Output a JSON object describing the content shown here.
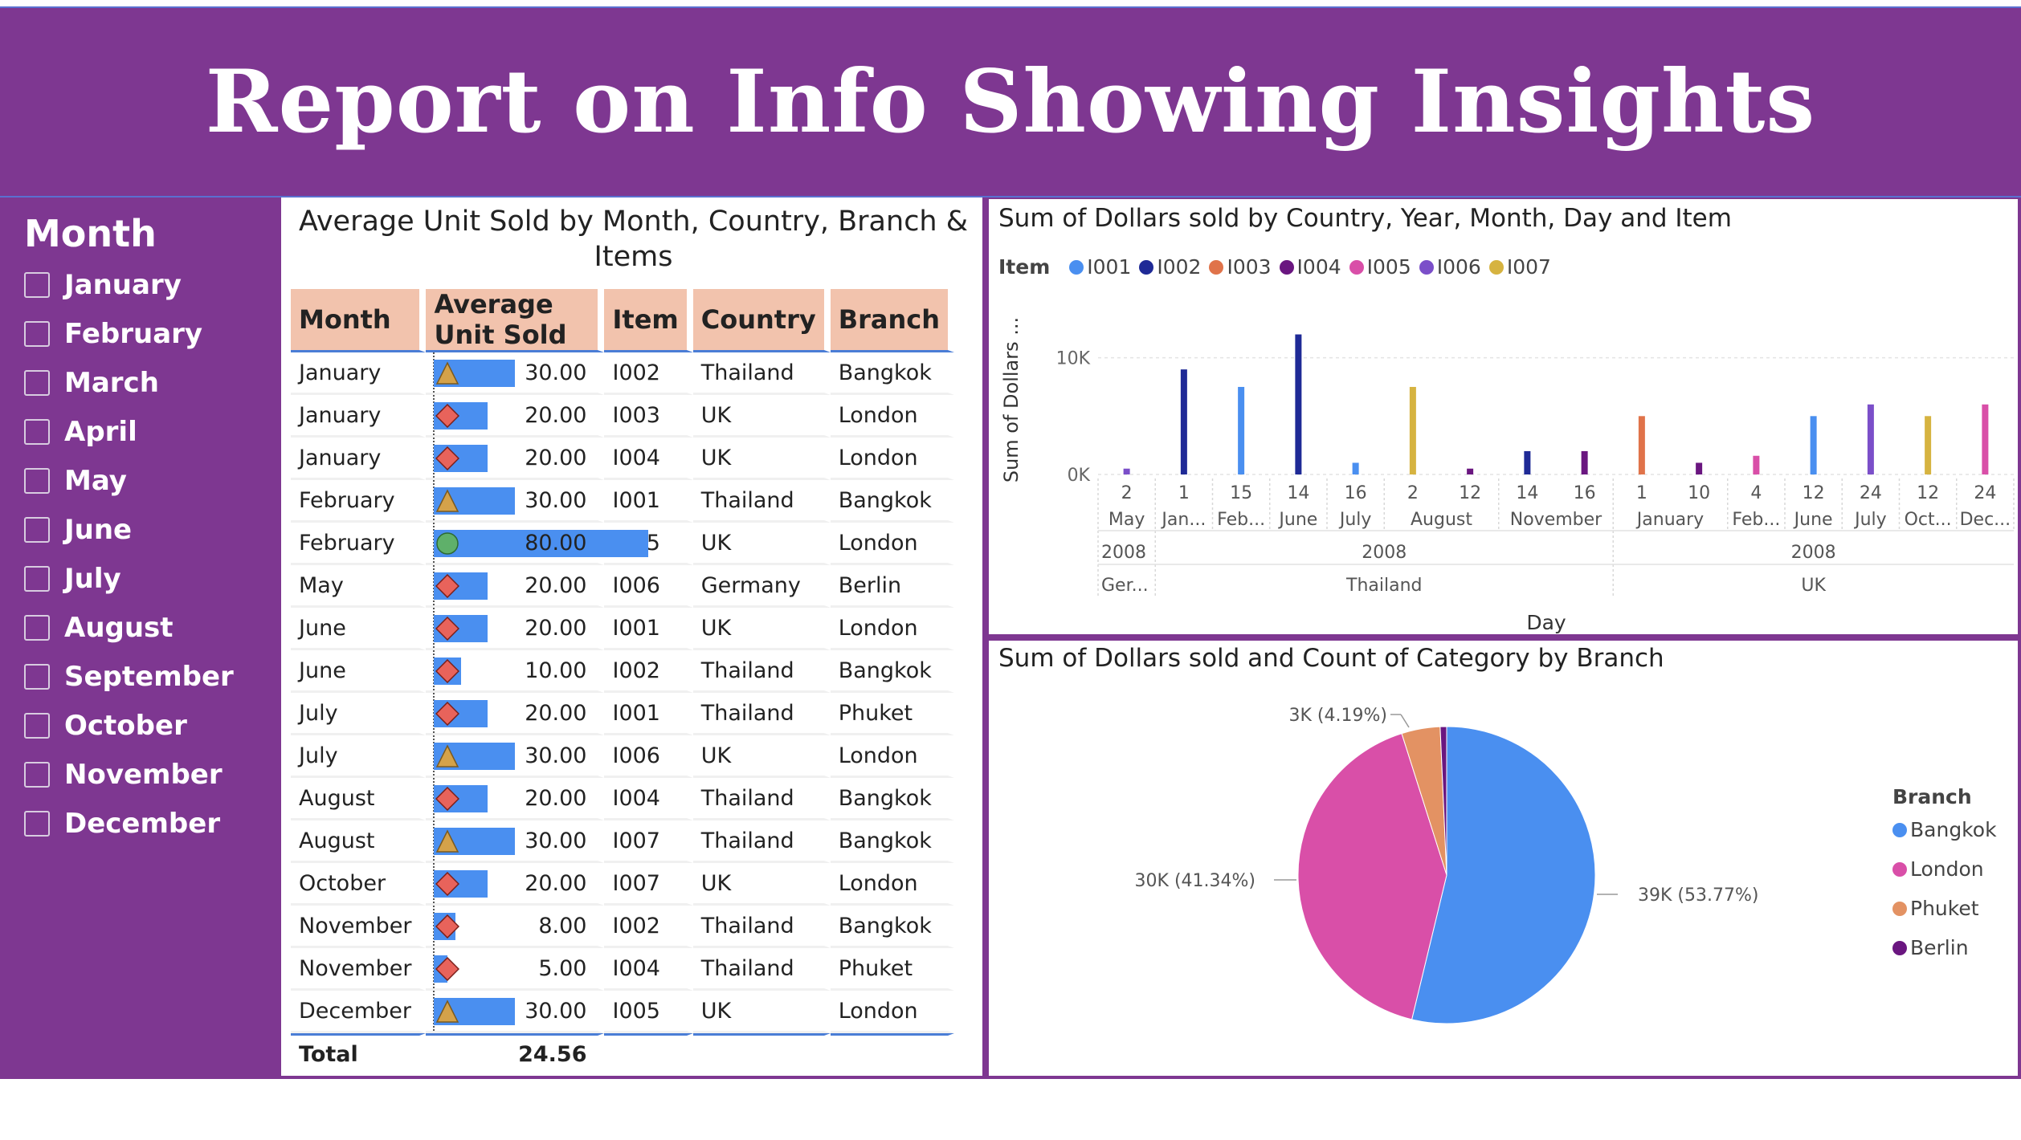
{
  "header": {
    "title": "Report on Info Showing Insights"
  },
  "slicer": {
    "title": "Month",
    "items": [
      "January",
      "February",
      "March",
      "April",
      "May",
      "June",
      "July",
      "August",
      "September",
      "October",
      "November",
      "December"
    ]
  },
  "table": {
    "title": "Average Unit Sold by Month, Country, Branch & Items",
    "columns": [
      "Month",
      "Average Unit Sold",
      "Item",
      "Country",
      "Branch"
    ],
    "max_value": 80,
    "rows": [
      {
        "month": "January",
        "avg": "30.00",
        "value": 30,
        "kpi": "triangle",
        "item": "I002",
        "country": "Thailand",
        "branch": "Bangkok"
      },
      {
        "month": "January",
        "avg": "20.00",
        "value": 20,
        "kpi": "diamond",
        "item": "I003",
        "country": "UK",
        "branch": "London"
      },
      {
        "month": "January",
        "avg": "20.00",
        "value": 20,
        "kpi": "diamond",
        "item": "I004",
        "country": "UK",
        "branch": "London"
      },
      {
        "month": "February",
        "avg": "30.00",
        "value": 30,
        "kpi": "triangle",
        "item": "I001",
        "country": "Thailand",
        "branch": "Bangkok"
      },
      {
        "month": "February",
        "avg": "80.00",
        "value": 80,
        "kpi": "circle",
        "item": "I005",
        "country": "UK",
        "branch": "London"
      },
      {
        "month": "May",
        "avg": "20.00",
        "value": 20,
        "kpi": "diamond",
        "item": "I006",
        "country": "Germany",
        "branch": "Berlin"
      },
      {
        "month": "June",
        "avg": "20.00",
        "value": 20,
        "kpi": "diamond",
        "item": "I001",
        "country": "UK",
        "branch": "London"
      },
      {
        "month": "June",
        "avg": "10.00",
        "value": 10,
        "kpi": "diamond",
        "item": "I002",
        "country": "Thailand",
        "branch": "Bangkok"
      },
      {
        "month": "July",
        "avg": "20.00",
        "value": 20,
        "kpi": "diamond",
        "item": "I001",
        "country": "Thailand",
        "branch": "Phuket"
      },
      {
        "month": "July",
        "avg": "30.00",
        "value": 30,
        "kpi": "triangle",
        "item": "I006",
        "country": "UK",
        "branch": "London"
      },
      {
        "month": "August",
        "avg": "20.00",
        "value": 20,
        "kpi": "diamond",
        "item": "I004",
        "country": "Thailand",
        "branch": "Bangkok"
      },
      {
        "month": "August",
        "avg": "30.00",
        "value": 30,
        "kpi": "triangle",
        "item": "I007",
        "country": "Thailand",
        "branch": "Bangkok"
      },
      {
        "month": "October",
        "avg": "20.00",
        "value": 20,
        "kpi": "diamond",
        "item": "I007",
        "country": "UK",
        "branch": "London"
      },
      {
        "month": "November",
        "avg": "8.00",
        "value": 8,
        "kpi": "diamond",
        "item": "I002",
        "country": "Thailand",
        "branch": "Bangkok"
      },
      {
        "month": "November",
        "avg": "5.00",
        "value": 5,
        "kpi": "diamond",
        "item": "I004",
        "country": "Thailand",
        "branch": "Phuket"
      },
      {
        "month": "December",
        "avg": "30.00",
        "value": 30,
        "kpi": "triangle",
        "item": "I005",
        "country": "UK",
        "branch": "London"
      }
    ],
    "total_label": "Total",
    "total_value": "24.56"
  },
  "colors": {
    "purple": "#7e3791",
    "header_fill": "#f2c3ad",
    "bar_blue": "#4a8ff0",
    "kpi_triangle": "#d4a24a",
    "kpi_diamond": "#e8635b",
    "kpi_circle": "#5fb06a"
  },
  "chart_data": [
    {
      "type": "bar",
      "title": "Sum of Dollars sold by Country, Year, Month, Day and Item",
      "ylabel": "Sum of Dollars ...",
      "xlabel": "Day",
      "legend_title": "Item",
      "legend_position": "top-left",
      "yticks": [
        "0K",
        "10K"
      ],
      "ylim": [
        0,
        13000
      ],
      "grid": true,
      "series": [
        {
          "name": "I001",
          "color": "#4a8ff0"
        },
        {
          "name": "I002",
          "color": "#1f2a96"
        },
        {
          "name": "I003",
          "color": "#e0734a"
        },
        {
          "name": "I004",
          "color": "#6a1680"
        },
        {
          "name": "I005",
          "color": "#d94fa8"
        },
        {
          "name": "I006",
          "color": "#7b4fc9"
        },
        {
          "name": "I007",
          "color": "#d6b340"
        }
      ],
      "day_labels": [
        {
          "day": "2",
          "month": "May"
        },
        {
          "day": "1",
          "month": "Jan..."
        },
        {
          "day": "15",
          "month": "Feb..."
        },
        {
          "day": "14",
          "month": "June"
        },
        {
          "day": "16",
          "month": "July"
        },
        {
          "day": "2",
          "month": "August"
        },
        {
          "day": "12",
          "month": ""
        },
        {
          "day": "14",
          "month": "November"
        },
        {
          "day": "16",
          "month": ""
        },
        {
          "day": "1",
          "month": "January"
        },
        {
          "day": "10",
          "month": ""
        },
        {
          "day": "4",
          "month": "Feb..."
        },
        {
          "day": "12",
          "month": "June"
        },
        {
          "day": "24",
          "month": "July"
        },
        {
          "day": "12",
          "month": "Oct..."
        },
        {
          "day": "24",
          "month": "Dec..."
        }
      ],
      "year_labels": [
        {
          "label": "2008",
          "country": "Ger..."
        },
        {
          "label": "2008",
          "country": "Thailand"
        },
        {
          "label": "2008",
          "country": "UK"
        }
      ],
      "bars": [
        {
          "slot": 0,
          "item": "I006",
          "value": 500
        },
        {
          "slot": 1,
          "item": "I002",
          "value": 9000
        },
        {
          "slot": 2,
          "item": "I001",
          "value": 7500
        },
        {
          "slot": 3,
          "item": "I002",
          "value": 12000
        },
        {
          "slot": 4,
          "item": "I001",
          "value": 1000
        },
        {
          "slot": 5,
          "item": "I007",
          "value": 7500
        },
        {
          "slot": 6,
          "item": "I004",
          "value": 500
        },
        {
          "slot": 7,
          "item": "I002",
          "value": 2000
        },
        {
          "slot": 8,
          "item": "I004",
          "value": 2000
        },
        {
          "slot": 9,
          "item": "I003",
          "value": 5000
        },
        {
          "slot": 10,
          "item": "I004",
          "value": 1000
        },
        {
          "slot": 11,
          "item": "I005",
          "value": 1600
        },
        {
          "slot": 12,
          "item": "I001",
          "value": 5000
        },
        {
          "slot": 13,
          "item": "I006",
          "value": 6000
        },
        {
          "slot": 14,
          "item": "I007",
          "value": 5000
        },
        {
          "slot": 15,
          "item": "I005",
          "value": 6000
        }
      ]
    },
    {
      "type": "pie",
      "title": "Sum of Dollars sold and Count of Category by Branch",
      "legend_title": "Branch",
      "legend_position": "right",
      "slices": [
        {
          "label": "Bangkok",
          "value": 53.77,
          "text": "39K (53.77%)",
          "color": "#4a8ff0"
        },
        {
          "label": "London",
          "value": 41.34,
          "text": "30K (41.34%)",
          "color": "#d94fa8"
        },
        {
          "label": "Phuket",
          "value": 4.19,
          "text": "3K (4.19%)",
          "color": "#e39263"
        },
        {
          "label": "Berlin",
          "value": 0.7,
          "text": "",
          "color": "#6a1680"
        }
      ]
    }
  ]
}
